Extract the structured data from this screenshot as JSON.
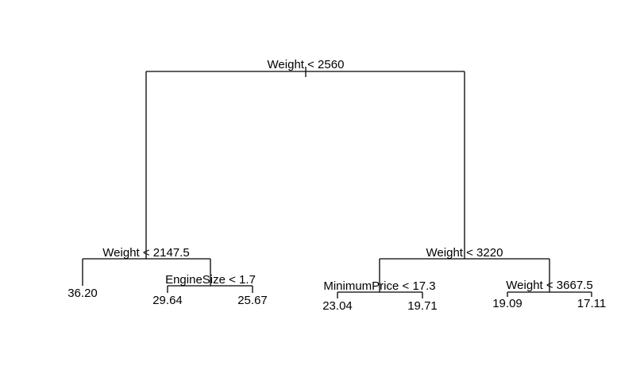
{
  "tree": {
    "root_split": {
      "label": "Weight < 2560"
    },
    "left_split": {
      "label": "Weight < 2147.5"
    },
    "right_split": {
      "label": "Weight < 3220"
    },
    "left_right_split": {
      "label": "EngineSize < 1.7"
    },
    "right_left_split": {
      "label": "MinimumPrice < 17.3"
    },
    "right_right_split": {
      "label": "Weight < 3667.5"
    },
    "leaves": {
      "ll": "36.20",
      "lrl": "29.64",
      "lrr": "25.67",
      "rll": "23.04",
      "rlr": "19.71",
      "rrl": "19.09",
      "rrr": "17.11"
    }
  }
}
